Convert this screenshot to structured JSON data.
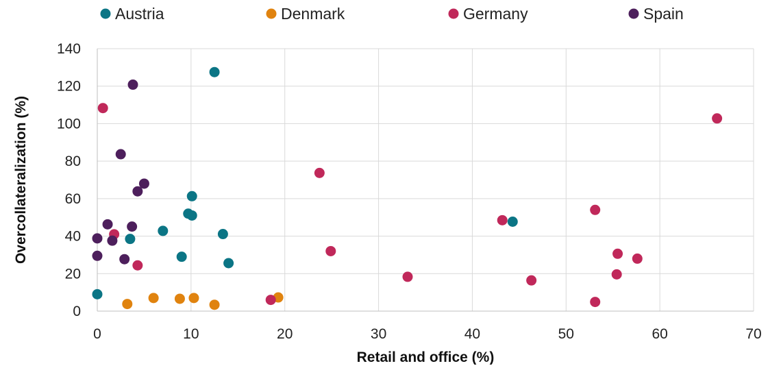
{
  "chart_data": {
    "type": "scatter",
    "title": "",
    "xlabel": "Retail and office (%)",
    "ylabel": "Overcollateralization (%)",
    "xlim": [
      0,
      70
    ],
    "ylim": [
      0,
      140
    ],
    "x_ticks": [
      0,
      10,
      20,
      30,
      40,
      50,
      60,
      70
    ],
    "y_ticks": [
      0,
      20,
      40,
      60,
      80,
      100,
      120,
      140
    ],
    "grid": "on",
    "legend_position": "top",
    "series": [
      {
        "name": "Austria",
        "color": "#0b7585",
        "points": [
          {
            "x": 12.5,
            "y": 127.5
          },
          {
            "x": 10.1,
            "y": 61.3
          },
          {
            "x": 9.7,
            "y": 52.0
          },
          {
            "x": 10.1,
            "y": 51.0
          },
          {
            "x": 44.3,
            "y": 47.7
          },
          {
            "x": 7.0,
            "y": 42.8
          },
          {
            "x": 13.4,
            "y": 41.1
          },
          {
            "x": 3.5,
            "y": 38.5
          },
          {
            "x": 9.0,
            "y": 29.0
          },
          {
            "x": 14.0,
            "y": 25.6
          },
          {
            "x": 0.0,
            "y": 9.0
          }
        ]
      },
      {
        "name": "Denmark",
        "color": "#e0830f",
        "points": [
          {
            "x": 3.2,
            "y": 3.8
          },
          {
            "x": 6.0,
            "y": 7.0
          },
          {
            "x": 8.8,
            "y": 6.6
          },
          {
            "x": 10.3,
            "y": 7.0
          },
          {
            "x": 12.5,
            "y": 3.4
          },
          {
            "x": 19.3,
            "y": 7.3
          }
        ]
      },
      {
        "name": "Germany",
        "color": "#c0285a",
        "points": [
          {
            "x": 0.6,
            "y": 108.3
          },
          {
            "x": 66.1,
            "y": 102.8
          },
          {
            "x": 23.7,
            "y": 73.7
          },
          {
            "x": 53.1,
            "y": 54.0
          },
          {
            "x": 43.2,
            "y": 48.5
          },
          {
            "x": 1.8,
            "y": 41.0
          },
          {
            "x": 24.9,
            "y": 32.0
          },
          {
            "x": 55.5,
            "y": 30.6
          },
          {
            "x": 57.6,
            "y": 28.0
          },
          {
            "x": 4.3,
            "y": 24.4
          },
          {
            "x": 55.4,
            "y": 19.6
          },
          {
            "x": 33.1,
            "y": 18.3
          },
          {
            "x": 46.3,
            "y": 16.4
          },
          {
            "x": 18.5,
            "y": 6.0
          },
          {
            "x": 53.1,
            "y": 4.9
          }
        ]
      },
      {
        "name": "Spain",
        "color": "#4d1f5c",
        "points": [
          {
            "x": 3.8,
            "y": 120.8
          },
          {
            "x": 2.5,
            "y": 83.7
          },
          {
            "x": 5.0,
            "y": 68.0
          },
          {
            "x": 4.3,
            "y": 63.9
          },
          {
            "x": 1.1,
            "y": 46.3
          },
          {
            "x": 3.7,
            "y": 45.1
          },
          {
            "x": 0.0,
            "y": 38.8
          },
          {
            "x": 1.6,
            "y": 37.6
          },
          {
            "x": 0.0,
            "y": 29.5
          },
          {
            "x": 2.9,
            "y": 27.7
          }
        ]
      }
    ]
  }
}
